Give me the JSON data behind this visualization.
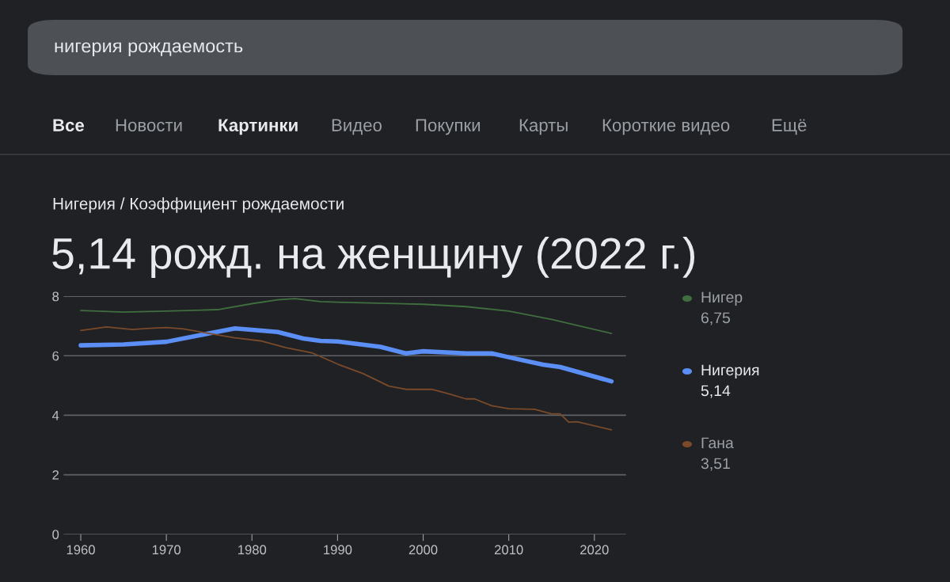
{
  "chart_data": {
    "type": "line",
    "title": "5,14 рожд. на женщину (2022 г.)",
    "subtitle": "Нигерия / Коэффициент рождаемости",
    "annotations": [
      "нигерия рождаемость",
      "Все",
      "Новости",
      "Картинки",
      "Видео",
      "Покупки",
      "Карты",
      "Короткие видео",
      "Ещё",
      "6,75",
      "5,14",
      "3,51"
    ],
    "series": [
      {
        "name": "Нигер",
        "color": "#3f6e3f",
        "x": [
          1960,
          1965,
          1970,
          1976,
          1980,
          1983,
          1985,
          1988,
          1990,
          2000,
          2005,
          2010,
          2015,
          2022
        ],
        "values": [
          7.52,
          7.47,
          7.5,
          7.55,
          7.75,
          7.88,
          7.92,
          7.82,
          7.8,
          7.73,
          7.65,
          7.5,
          7.22,
          6.75
        ]
      },
      {
        "name": "Нигерия",
        "color": "#5b8ff5",
        "x": [
          1960,
          1965,
          1970,
          1975,
          1978,
          1980,
          1983,
          1986,
          1988,
          1990,
          1995,
          1998,
          2000,
          2005,
          2008,
          2010,
          2014,
          2016,
          2022
        ],
        "values": [
          6.35,
          6.38,
          6.47,
          6.75,
          6.92,
          6.87,
          6.8,
          6.58,
          6.5,
          6.48,
          6.3,
          6.08,
          6.15,
          6.08,
          6.08,
          5.95,
          5.7,
          5.62,
          5.14
        ]
      },
      {
        "name": "Гана",
        "color": "#7a4a2a",
        "x": [
          1960,
          1963,
          1966,
          1968,
          1970,
          1972,
          1975,
          1978,
          1981,
          1984,
          1987,
          1990,
          1993,
          1996,
          1998,
          2001,
          2003,
          2005,
          2006,
          2008,
          2010,
          2013,
          2015,
          2016,
          2017,
          2018,
          2022
        ],
        "values": [
          6.85,
          6.97,
          6.88,
          6.92,
          6.95,
          6.9,
          6.75,
          6.6,
          6.5,
          6.27,
          6.1,
          5.72,
          5.4,
          4.98,
          4.87,
          4.87,
          4.72,
          4.55,
          4.55,
          4.32,
          4.22,
          4.2,
          4.05,
          4.05,
          3.77,
          3.78,
          3.51
        ]
      }
    ],
    "xlim": [
      1958,
      2023.7
    ],
    "xticks": [
      1960,
      1970,
      1980,
      1990,
      2000,
      2010,
      2020
    ],
    "ylim": [
      0,
      8
    ],
    "yticks": [
      0,
      2,
      4,
      6,
      8
    ],
    "grid": "y",
    "legend": "right"
  }
}
